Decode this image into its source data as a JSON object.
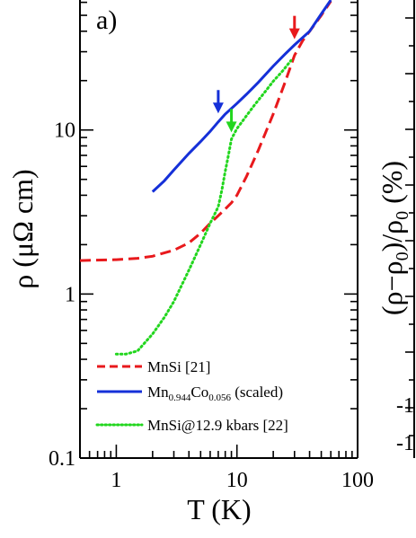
{
  "chart_data": [
    {
      "panel_label": "a)",
      "type": "line",
      "xlabel": "T (K)",
      "ylabel": "ρ (μΩ cm)",
      "xscale": "log",
      "yscale": "log",
      "xlim": [
        0.5,
        100
      ],
      "ylim": [
        0.1,
        62
      ],
      "x_tick_labels": [
        {
          "value": 1,
          "label": "1"
        },
        {
          "value": 10,
          "label": "10"
        },
        {
          "value": 100,
          "label": "100"
        }
      ],
      "y_tick_labels": [
        {
          "value": 0.1,
          "label": "0.1"
        },
        {
          "value": 1,
          "label": "1"
        },
        {
          "value": 10,
          "label": "10"
        }
      ],
      "legend_position": "bottom-left",
      "series": [
        {
          "name": "MnSi [21]",
          "color": "#e8191c",
          "style": "dashed",
          "x": [
            0.5,
            1,
            1.5,
            2,
            3,
            4,
            5,
            6,
            7,
            8,
            9,
            10,
            12,
            15,
            20,
            25,
            30,
            35,
            40,
            50,
            60
          ],
          "y": [
            1.6,
            1.62,
            1.65,
            1.7,
            1.85,
            2.05,
            2.35,
            2.7,
            3.0,
            3.3,
            3.6,
            4.0,
            5.2,
            7.5,
            12.5,
            19.5,
            28.5,
            35,
            40,
            50,
            61
          ]
        },
        {
          "name": "Mn_{0.944}Co_{0.056} (scaled)",
          "name_parts": {
            "mn": "Mn",
            "mn_sub": "0.944",
            "co": "Co",
            "co_sub": "0.056",
            "suffix": " (scaled)"
          },
          "color": "#1530d8",
          "style": "solid",
          "x": [
            2,
            2.5,
            3,
            4,
            5,
            6,
            7,
            8,
            10,
            12,
            15,
            20,
            25,
            30,
            40,
            50,
            60
          ],
          "y": [
            4.2,
            4.9,
            5.7,
            7.2,
            8.5,
            9.8,
            11.2,
            12.5,
            14.5,
            16.5,
            19.5,
            24.5,
            29,
            33,
            40,
            51,
            62
          ]
        },
        {
          "name": "MnSi@12.9 kbars [22]",
          "color": "#22d61e",
          "style": "dotted",
          "x": [
            1,
            1.2,
            1.5,
            2,
            2.5,
            3,
            4,
            5,
            6,
            7,
            7.5,
            8,
            8.5,
            9,
            9.5,
            10,
            11,
            12,
            14,
            17,
            20,
            24,
            28
          ],
          "y": [
            0.43,
            0.43,
            0.45,
            0.57,
            0.72,
            0.9,
            1.4,
            2.0,
            2.7,
            3.4,
            4.3,
            5.6,
            7.0,
            8.8,
            9.5,
            10.2,
            11.2,
            12.2,
            14.2,
            17,
            19.8,
            23,
            26.5
          ]
        }
      ],
      "annotations": [
        {
          "kind": "arrow",
          "color": "#1530d8",
          "x": 7,
          "y": 12
        },
        {
          "kind": "arrow",
          "color": "#22d61e",
          "x": 9,
          "y": 9.2
        },
        {
          "kind": "arrow",
          "color": "#e8191c",
          "x": 30,
          "y": 34
        }
      ]
    },
    {
      "type": "line",
      "ylabel": "(ρ−ρ0)/ρ0 (%)",
      "ylabel_parts": {
        "open": "(ρ−ρ",
        "sub1": "0",
        "mid": ")/ρ",
        "sub2": "0",
        "close": " (%)"
      },
      "partial_tick_label": "-1",
      "partial_tick_label_2": "-1"
    }
  ]
}
